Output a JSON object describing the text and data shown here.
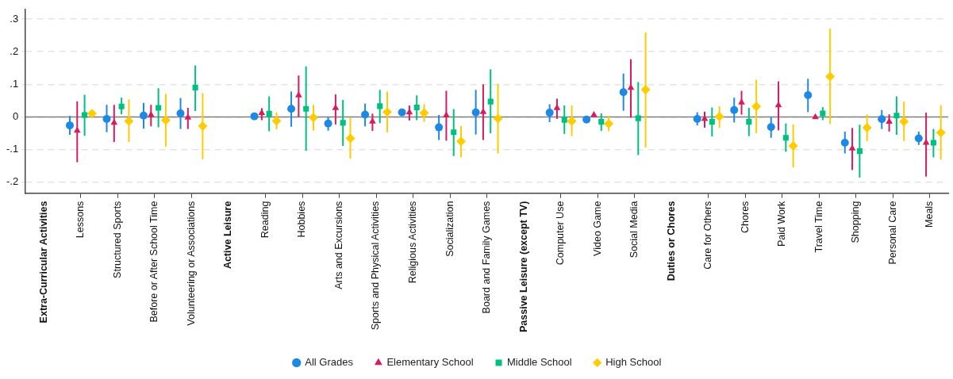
{
  "chart_data": {
    "type": "scatter",
    "categories": [
      "Extra-Curricular Activities",
      "Lessons",
      "Structured Sports",
      "Before or After School Time",
      "Volunteering or Associations",
      "Active Leisure",
      "Reading",
      "Hobbies",
      "Arts and Excursions",
      "Sports and Physical Activities",
      "Religious Activities",
      "Socialization",
      "Board and Family Games",
      "Passive Leisure (except TV)",
      "Computer Use",
      "Video Game",
      "Social Media",
      "Duties or Chores",
      "Care for Others",
      "Chores",
      "Paid Work",
      "Travel Time",
      "Shopping",
      "Personal Care",
      "Meals"
    ],
    "ylim": [
      -0.234,
      0.33
    ],
    "yticks": [
      {
        "value": -0.2,
        "label": "-.2"
      },
      {
        "value": -0.1,
        "label": "-.1"
      },
      {
        "value": 0,
        "label": "0"
      },
      {
        "value": 0.1,
        "label": ".1"
      },
      {
        "value": 0.2,
        "label": ".2"
      },
      {
        "value": 0.3,
        "label": ".3"
      }
    ],
    "grid": "y",
    "legend": "bottom",
    "ref_lines": [
      {
        "axis": "y",
        "value": 0,
        "color": "#7f7f7f"
      }
    ],
    "series": [
      {
        "name": "All Grades",
        "color": "#1e88e5",
        "marker": "circle",
        "values": [
          null,
          -0.026,
          -0.006,
          0.004,
          0.011,
          null,
          0.002,
          0.025,
          -0.02,
          0.007,
          0.014,
          -0.032,
          0.014,
          null,
          0.013,
          -0.008,
          0.076,
          null,
          -0.006,
          0.021,
          -0.031,
          0.067,
          -0.079,
          -0.007,
          -0.066
        ],
        "errors": [
          null,
          [
            -0.055,
            0.003
          ],
          [
            -0.047,
            0.037
          ],
          [
            -0.036,
            0.043
          ],
          [
            -0.037,
            0.058
          ],
          null,
          [
            -0.005,
            0.01
          ],
          [
            -0.03,
            0.078
          ],
          [
            -0.042,
            0
          ],
          [
            -0.029,
            0.041
          ],
          [
            0.008,
            0.02
          ],
          [
            -0.071,
            0.006
          ],
          [
            -0.054,
            0.083
          ],
          null,
          [
            -0.016,
            0.039
          ],
          [
            -0.012,
            -0.003
          ],
          [
            0.019,
            0.133
          ],
          null,
          [
            -0.026,
            0.014
          ],
          [
            -0.017,
            0.059
          ],
          [
            -0.064,
            0
          ],
          [
            0.015,
            0.117
          ],
          [
            -0.112,
            -0.045
          ],
          [
            -0.037,
            0.021
          ],
          [
            -0.086,
            -0.045
          ]
        ]
      },
      {
        "name": "Elementary School",
        "color": "#d81b60",
        "marker": "triangle",
        "values": [
          null,
          -0.042,
          -0.018,
          0.006,
          -0.002,
          null,
          0.012,
          0.066,
          0.027,
          -0.014,
          0.014,
          0.005,
          0.015,
          null,
          0.027,
          0.006,
          0.089,
          null,
          -0.006,
          0.044,
          0.036,
          -0.001,
          -0.097,
          -0.015,
          -0.079
        ],
        "errors": [
          null,
          [
            -0.139,
            0.048
          ],
          [
            -0.077,
            0.037
          ],
          [
            -0.029,
            0.037
          ],
          [
            -0.037,
            0.028
          ],
          null,
          [
            -0.01,
            0.027
          ],
          [
            0,
            0.127
          ],
          [
            -0.023,
            0.069
          ],
          [
            -0.043,
            0.01
          ],
          [
            -0.011,
            0.035
          ],
          [
            -0.073,
            0.08
          ],
          [
            -0.071,
            0.1
          ],
          null,
          [
            -0.006,
            0.056
          ],
          [
            0.002,
            0.011
          ],
          [
            -0.002,
            0.177
          ],
          null,
          [
            -0.033,
            0.016
          ],
          [
            0.007,
            0.08
          ],
          [
            -0.041,
            0.109
          ],
          [
            -0.003,
            0.001
          ],
          [
            -0.163,
            -0.034
          ],
          [
            -0.045,
            0.008
          ],
          [
            -0.183,
            0.013
          ]
        ]
      },
      {
        "name": "Middle School",
        "color": "#00c07f",
        "marker": "square",
        "values": [
          null,
          0.006,
          0.032,
          0.028,
          0.09,
          null,
          0.01,
          0.025,
          -0.018,
          0.033,
          0.029,
          -0.047,
          0.047,
          null,
          -0.009,
          -0.015,
          -0.004,
          null,
          -0.015,
          -0.015,
          -0.064,
          0.011,
          -0.105,
          0.004,
          -0.079
        ],
        "errors": [
          null,
          [
            -0.058,
            0.068
          ],
          [
            0.008,
            0.059
          ],
          [
            -0.032,
            0.088
          ],
          [
            0.018,
            0.158
          ],
          null,
          [
            -0.044,
            0.063
          ],
          [
            -0.104,
            0.155
          ],
          [
            -0.089,
            0.052
          ],
          [
            -0.019,
            0.083
          ],
          [
            -0.01,
            0.066
          ],
          [
            -0.12,
            0.024
          ],
          [
            -0.05,
            0.146
          ],
          null,
          [
            -0.052,
            0.035
          ],
          [
            -0.043,
            0.011
          ],
          [
            -0.117,
            0.107
          ],
          null,
          [
            -0.06,
            0.029
          ],
          [
            -0.059,
            0.028
          ],
          [
            -0.107,
            -0.02
          ],
          [
            -0.01,
            0.03
          ],
          [
            -0.186,
            -0.024
          ],
          [
            -0.055,
            0.063
          ],
          [
            -0.124,
            -0.037
          ]
        ]
      },
      {
        "name": "High School",
        "color": "#ffcc00",
        "marker": "diamond",
        "values": [
          null,
          0.01,
          -0.013,
          -0.01,
          -0.028,
          null,
          -0.012,
          -0.002,
          -0.066,
          0.015,
          0.012,
          -0.075,
          -0.005,
          null,
          -0.013,
          -0.021,
          0.084,
          null,
          0.001,
          0.032,
          -0.089,
          0.124,
          -0.033,
          -0.014,
          -0.048
        ],
        "errors": [
          null,
          [
            0.002,
            0.017
          ],
          [
            -0.077,
            0.054
          ],
          [
            -0.091,
            0.071
          ],
          [
            -0.13,
            0.073
          ],
          null,
          [
            -0.038,
            0.014
          ],
          [
            -0.042,
            0.037
          ],
          [
            -0.128,
            -0.003
          ],
          [
            -0.047,
            0.078
          ],
          [
            -0.015,
            0.039
          ],
          [
            -0.124,
            -0.028
          ],
          [
            -0.112,
            0.102
          ],
          null,
          [
            -0.059,
            0.035
          ],
          [
            -0.044,
            0.003
          ],
          [
            -0.094,
            0.259
          ],
          null,
          [
            -0.034,
            0.033
          ],
          [
            -0.05,
            0.114
          ],
          [
            -0.155,
            -0.023
          ],
          [
            -0.022,
            0.271
          ],
          [
            -0.074,
            0.008
          ],
          [
            -0.074,
            0.047
          ],
          [
            -0.131,
            0.036
          ]
        ]
      }
    ]
  }
}
